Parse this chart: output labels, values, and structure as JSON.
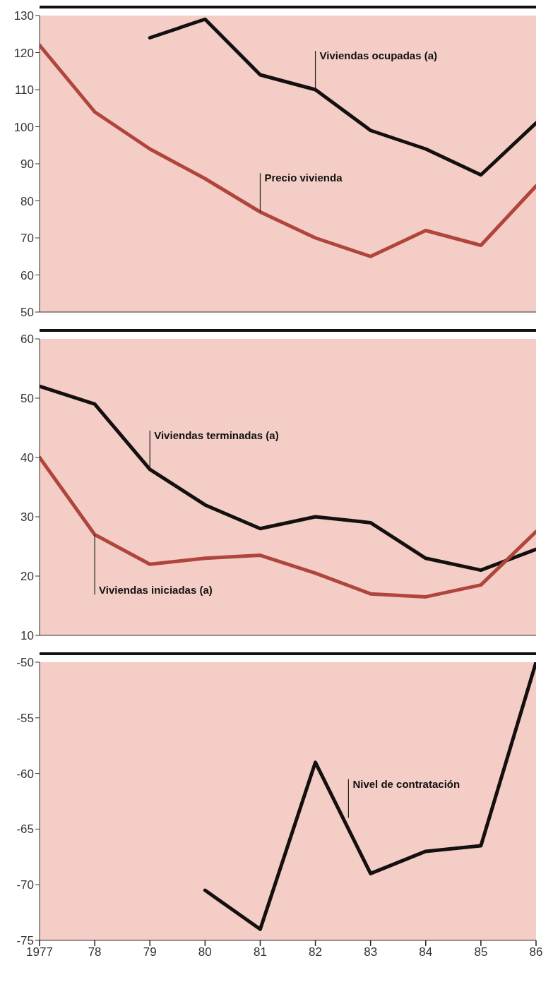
{
  "chart_data": [
    {
      "type": "line",
      "x": [
        1977,
        1978,
        1979,
        1980,
        1981,
        1982,
        1983,
        1984,
        1985,
        1986
      ],
      "xlim": [
        1977,
        1986
      ],
      "xticks": [
        {
          "value": 1977,
          "label": null
        },
        {
          "value": 1978,
          "label": null
        },
        {
          "value": 1979,
          "label": null
        },
        {
          "value": 1980,
          "label": null
        },
        {
          "value": 1981,
          "label": null
        },
        {
          "value": 1982,
          "label": null
        },
        {
          "value": 1983,
          "label": null
        },
        {
          "value": 1984,
          "label": null
        },
        {
          "value": 1985,
          "label": null
        },
        {
          "value": 1986,
          "label": null
        }
      ],
      "ylim": [
        50,
        130
      ],
      "yticks": [
        50,
        60,
        70,
        80,
        90,
        100,
        110,
        120,
        130
      ],
      "tick_labels": "y",
      "series": [
        {
          "color": "#141010",
          "values": [
            null,
            null,
            124,
            129,
            114,
            110,
            99,
            94,
            87,
            101
          ]
        },
        {
          "color": "#b0453c",
          "values": [
            122,
            104,
            94,
            86,
            77,
            70,
            65,
            72,
            68,
            84
          ]
        }
      ],
      "annotations": [
        {
          "text": "Viviendas ocupadas (a)",
          "x": 1982,
          "y": 110
        },
        {
          "text": "Precio vivienda",
          "x": 1981,
          "y": 77
        }
      ]
    },
    {
      "type": "line",
      "x": [
        1977,
        1978,
        1979,
        1980,
        1981,
        1982,
        1983,
        1984,
        1985,
        1986
      ],
      "xlim": [
        1977,
        1986
      ],
      "xticks": [
        {
          "value": 1977,
          "label": null
        },
        {
          "value": 1978,
          "label": null
        },
        {
          "value": 1979,
          "label": null
        },
        {
          "value": 1980,
          "label": null
        },
        {
          "value": 1981,
          "label": null
        },
        {
          "value": 1982,
          "label": null
        },
        {
          "value": 1983,
          "label": null
        },
        {
          "value": 1984,
          "label": null
        },
        {
          "value": 1985,
          "label": null
        },
        {
          "value": 1986,
          "label": null
        }
      ],
      "ylim": [
        10,
        60
      ],
      "yticks": [
        10,
        20,
        30,
        40,
        50,
        60
      ],
      "tick_labels": "y",
      "series": [
        {
          "color": "#141010",
          "values": [
            52,
            49,
            38,
            32,
            28,
            30,
            29,
            23,
            21,
            24.5
          ]
        },
        {
          "color": "#b0453c",
          "values": [
            40,
            27,
            22,
            23,
            23.5,
            20.5,
            17,
            16.5,
            18.5,
            27.5
          ]
        }
      ],
      "annotations": [
        {
          "text": "Viviendas terminadas (a)",
          "x": 1979,
          "y": 38
        },
        {
          "text": "Viviendas iniciadas (a)",
          "x": 1978,
          "y": 27
        }
      ]
    },
    {
      "type": "line",
      "x": [
        1980,
        1981,
        1982,
        1983,
        1984,
        1985,
        1986
      ],
      "xlim": [
        1977,
        1986
      ],
      "xticks": [
        1977,
        {
          "value": 1978,
          "label": "78"
        },
        {
          "value": 1979,
          "label": "79"
        },
        {
          "value": 1980,
          "label": "80"
        },
        {
          "value": 1981,
          "label": "81"
        },
        {
          "value": 1982,
          "label": "82"
        },
        {
          "value": 1983,
          "label": "83"
        },
        {
          "value": 1984,
          "label": "84"
        },
        {
          "value": 1985,
          "label": "85"
        },
        {
          "value": 1986,
          "label": "86"
        }
      ],
      "ylim": [
        -75,
        -50
      ],
      "yticks": [
        -75,
        -70,
        -65,
        -60,
        -55,
        -50
      ],
      "series": [
        {
          "color": "#141010",
          "values": [
            -70.5,
            -74,
            -59,
            -69,
            -67,
            -66.5,
            -50
          ]
        }
      ],
      "annotations": [
        {
          "text": "Nivel de contratación",
          "x": 1982.6,
          "y": -64
        }
      ]
    }
  ]
}
